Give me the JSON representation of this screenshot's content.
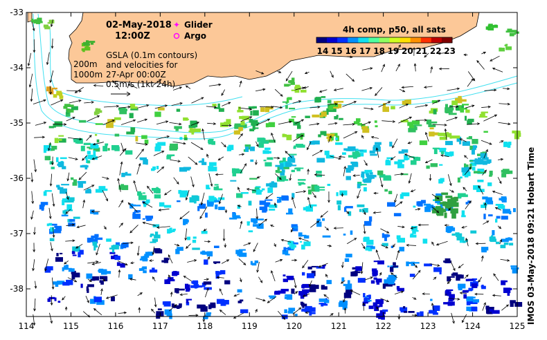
{
  "header": {
    "date": "02-May-2018",
    "time": "12:00Z"
  },
  "legend": {
    "glider_label": "Glider",
    "argo_label": "Argo",
    "glider_color": "#ff00ff",
    "argo_color": "#ff00ff"
  },
  "notes": {
    "depth_200": "200m",
    "depth_1000": "1000m",
    "gsla_line1": "GSLA (0.1m contours)",
    "gsla_line2": "and velocities for",
    "gsla_line3": "27-Apr 00:00Z",
    "gsla_line4": "0.5m/s (1kt 24h)"
  },
  "colorbar": {
    "title": "4h comp, p50, all sats",
    "labels": [
      "14",
      "15",
      "16",
      "17",
      "18",
      "19",
      "20",
      "21",
      "22",
      "23"
    ],
    "colors": [
      "#00007f",
      "#0000d0",
      "#0030ff",
      "#0090ff",
      "#10e0ef",
      "#50ffa0",
      "#90ff60",
      "#d0ff20",
      "#ffe000",
      "#ff9000",
      "#ff3000",
      "#c00000",
      "#7f0000"
    ]
  },
  "axes": {
    "x_ticks": [
      "114",
      "115",
      "116",
      "117",
      "118",
      "119",
      "120",
      "121",
      "122",
      "123",
      "124",
      "125"
    ],
    "y_ticks": [
      "-33",
      "-34",
      "-35",
      "-36",
      "-37",
      "-38"
    ],
    "xlim": [
      114,
      125
    ],
    "ylim": [
      -38.5,
      -33
    ]
  },
  "credit": "IMOS 03-May-2018 09:21 Hobart Time",
  "colors": {
    "land": "#fcc898",
    "contour": "#40e0f0",
    "arrow": "#000000"
  }
}
